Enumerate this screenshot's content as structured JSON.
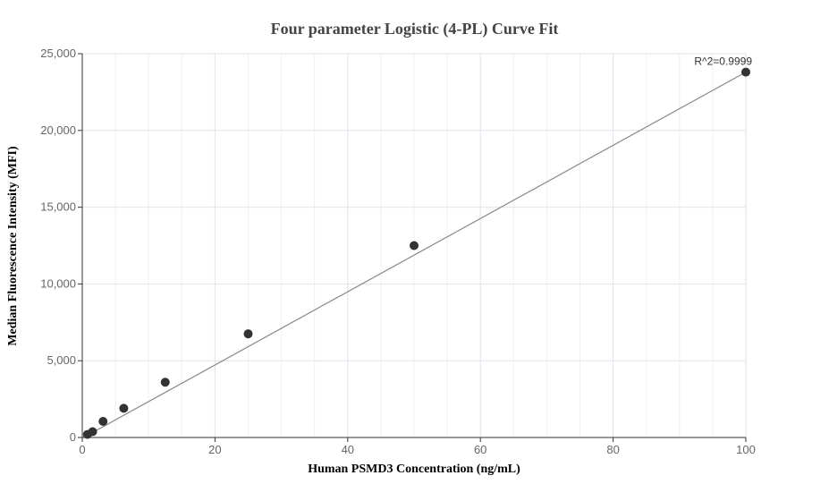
{
  "chart_data": {
    "type": "scatter",
    "title": "Four parameter Logistic (4-PL) Curve Fit",
    "xlabel": "Human PSMD3 Concentration (ng/mL)",
    "ylabel": "Median Fluorescence Intensity (MFI)",
    "xlim": [
      0,
      100
    ],
    "ylim": [
      0,
      25000
    ],
    "x_ticks": [
      0,
      20,
      40,
      60,
      80,
      100
    ],
    "x_tick_labels": [
      "0",
      "20",
      "40",
      "60",
      "80",
      "100"
    ],
    "y_ticks": [
      0,
      5000,
      10000,
      15000,
      20000,
      25000
    ],
    "y_tick_labels": [
      "0",
      "5,000",
      "10,000",
      "15,000",
      "20,000",
      "25,000"
    ],
    "grid": true,
    "series": [
      {
        "x": [
          0.78,
          1.56,
          3.13,
          6.25,
          12.5,
          25,
          50,
          100
        ],
        "y": [
          200,
          380,
          1050,
          1900,
          3600,
          6750,
          12500,
          23800
        ],
        "color": "#333333"
      }
    ],
    "fit_line": {
      "x": [
        0.78,
        100
      ],
      "y": [
        140,
        23800
      ],
      "color": "#888888"
    },
    "annotation": {
      "text": "R^2=0.9999",
      "x": 100,
      "y": 23800
    }
  }
}
